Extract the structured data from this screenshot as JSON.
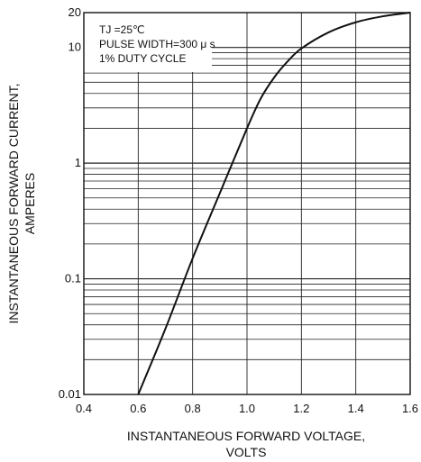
{
  "chart_data": {
    "type": "line",
    "title": "",
    "xlabel": [
      "INSTANTANEOUS FORWARD VOLTAGE,",
      "VOLTS"
    ],
    "ylabel": [
      "INSTANTANEOUS FORWARD CURRENT,",
      "AMPERES"
    ],
    "xlim": [
      0.4,
      1.6
    ],
    "ylim": [
      0.01,
      20
    ],
    "yscale": "log",
    "xticks": [
      0.4,
      0.6,
      0.8,
      1.0,
      1.2,
      1.4,
      1.6
    ],
    "xtick_labels": [
      "0.4",
      "0.6",
      "0.8",
      "1.0",
      "1.2",
      "1.4",
      "1.6"
    ],
    "yticks": [
      0.01,
      0.1,
      1,
      10,
      20
    ],
    "ytick_labels": [
      "0.01",
      "0.1",
      "1",
      "10",
      "20"
    ],
    "grid": true,
    "annotations": [
      "TJ =25℃",
      "PULSE WIDTH=300 μ s",
      "1% DUTY CYCLE"
    ],
    "series": [
      {
        "x": [
          0.6,
          0.7,
          0.8,
          0.9,
          1.0,
          1.05,
          1.1,
          1.15,
          1.2,
          1.3,
          1.4,
          1.5,
          1.6
        ],
        "y": [
          0.01,
          0.037,
          0.15,
          0.55,
          2.0,
          3.6,
          5.5,
          7.6,
          9.8,
          13.5,
          16.5,
          18.6,
          20
        ]
      }
    ]
  }
}
